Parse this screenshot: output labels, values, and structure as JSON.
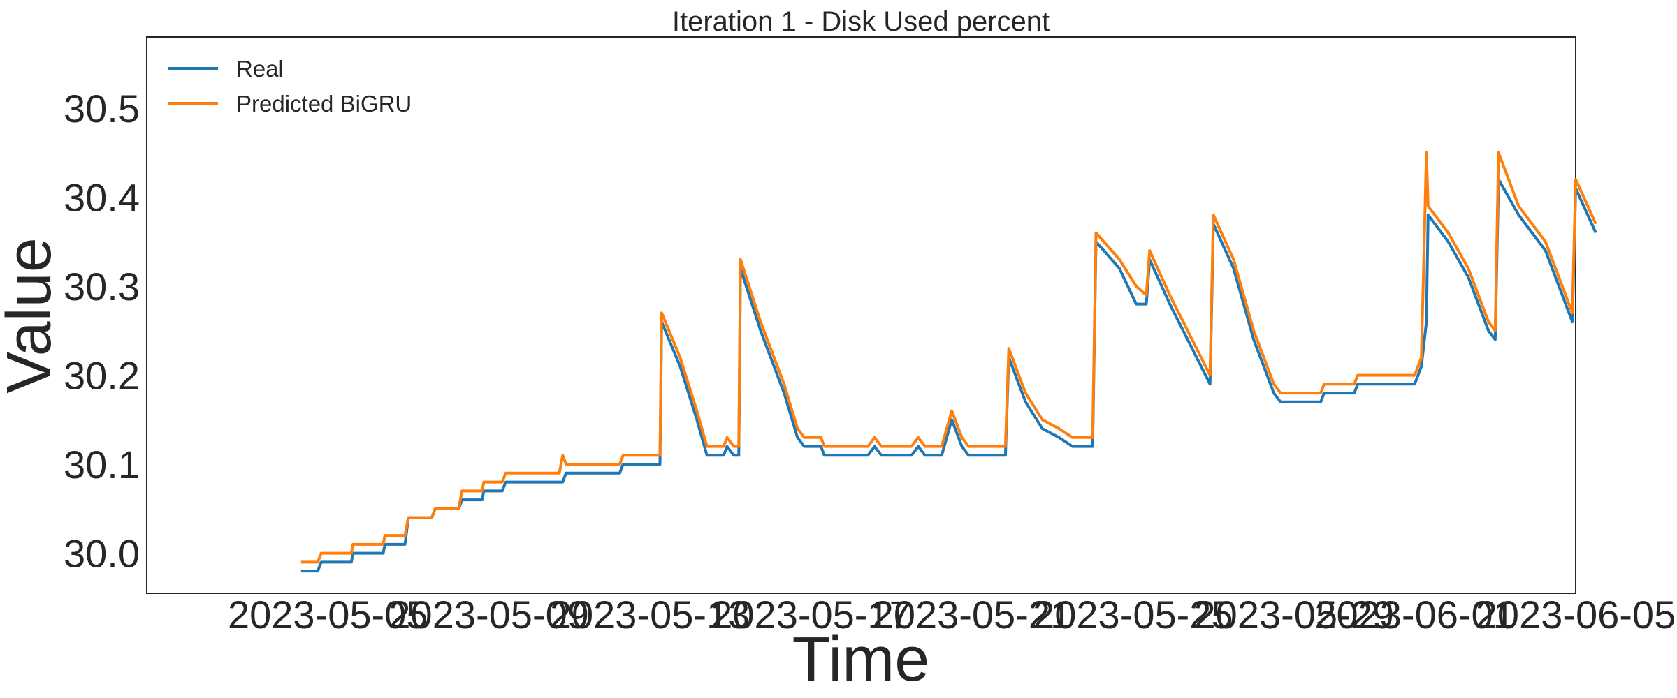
{
  "chart_data": {
    "type": "line",
    "title": "Iteration 1 - Disk Used percent",
    "xlabel": "Time",
    "ylabel": "Value",
    "xlim": [
      "2023-04-30T12:00",
      "2023-06-05T00:00"
    ],
    "ylim": [
      29.955,
      30.58
    ],
    "yticks": [
      "30.0",
      "30.1",
      "30.2",
      "30.3",
      "30.4",
      "30.5"
    ],
    "xticks": [
      "2023-05-05",
      "2023-05-09",
      "2023-05-13",
      "2023-05-17",
      "2023-05-21",
      "2023-05-25",
      "2023-05-29",
      "2023-06-01",
      "2023-06-05"
    ],
    "grid": false,
    "legend": "top-left",
    "colors": {
      "real": "#1f77b4",
      "predicted": "#ff7f0e",
      "axes": "#262626"
    },
    "series": [
      {
        "name": "Real",
        "color": "#1f77b4",
        "points": [
          [
            "2023-05-04T08:00",
            29.98
          ],
          [
            "2023-05-04T18:00",
            29.98
          ],
          [
            "2023-05-04T20:00",
            29.99
          ],
          [
            "2023-05-05T14:00",
            29.99
          ],
          [
            "2023-05-05T15:00",
            30.0
          ],
          [
            "2023-05-06T09:00",
            30.0
          ],
          [
            "2023-05-06T10:00",
            30.01
          ],
          [
            "2023-05-06T22:00",
            30.01
          ],
          [
            "2023-05-07T00:00",
            30.04
          ],
          [
            "2023-05-07T14:00",
            30.04
          ],
          [
            "2023-05-07T16:00",
            30.05
          ],
          [
            "2023-05-08T06:00",
            30.05
          ],
          [
            "2023-05-08T08:00",
            30.06
          ],
          [
            "2023-05-08T20:00",
            30.06
          ],
          [
            "2023-05-08T21:00",
            30.07
          ],
          [
            "2023-05-09T08:00",
            30.07
          ],
          [
            "2023-05-09T10:00",
            30.08
          ],
          [
            "2023-05-10T20:00",
            30.08
          ],
          [
            "2023-05-10T22:00",
            30.09
          ],
          [
            "2023-05-12T06:00",
            30.09
          ],
          [
            "2023-05-12T08:00",
            30.1
          ],
          [
            "2023-05-13T06:00",
            30.1
          ],
          [
            "2023-05-13T07:00",
            30.26
          ],
          [
            "2023-05-13T18:00",
            30.21
          ],
          [
            "2023-05-14T04:00",
            30.15
          ],
          [
            "2023-05-14T10:00",
            30.11
          ],
          [
            "2023-05-14T20:00",
            30.11
          ],
          [
            "2023-05-14T22:00",
            30.12
          ],
          [
            "2023-05-15T02:00",
            30.11
          ],
          [
            "2023-05-15T05:00",
            30.11
          ],
          [
            "2023-05-15T06:00",
            30.32
          ],
          [
            "2023-05-15T18:00",
            30.25
          ],
          [
            "2023-05-16T08:00",
            30.18
          ],
          [
            "2023-05-16T16:00",
            30.13
          ],
          [
            "2023-05-16T20:00",
            30.12
          ],
          [
            "2023-05-17T06:00",
            30.12
          ],
          [
            "2023-05-17T08:00",
            30.11
          ],
          [
            "2023-05-18T10:00",
            30.11
          ],
          [
            "2023-05-18T14:00",
            30.12
          ],
          [
            "2023-05-18T18:00",
            30.11
          ],
          [
            "2023-05-19T12:00",
            30.11
          ],
          [
            "2023-05-19T16:00",
            30.12
          ],
          [
            "2023-05-19T20:00",
            30.11
          ],
          [
            "2023-05-20T06:00",
            30.11
          ],
          [
            "2023-05-20T12:00",
            30.15
          ],
          [
            "2023-05-20T18:00",
            30.12
          ],
          [
            "2023-05-20T22:00",
            30.11
          ],
          [
            "2023-05-21T20:00",
            30.11
          ],
          [
            "2023-05-21T22:00",
            30.22
          ],
          [
            "2023-05-22T08:00",
            30.17
          ],
          [
            "2023-05-22T18:00",
            30.14
          ],
          [
            "2023-05-23T04:00",
            30.13
          ],
          [
            "2023-05-23T12:00",
            30.12
          ],
          [
            "2023-05-24T00:00",
            30.12
          ],
          [
            "2023-05-24T02:00",
            30.35
          ],
          [
            "2023-05-24T16:00",
            30.32
          ],
          [
            "2023-05-25T02:00",
            30.28
          ],
          [
            "2023-05-25T08:00",
            30.28
          ],
          [
            "2023-05-25T10:00",
            30.33
          ],
          [
            "2023-05-25T22:00",
            30.28
          ],
          [
            "2023-05-26T14:00",
            30.22
          ],
          [
            "2023-05-26T22:00",
            30.19
          ],
          [
            "2023-05-27T00:00",
            30.37
          ],
          [
            "2023-05-27T12:00",
            30.32
          ],
          [
            "2023-05-28T00:00",
            30.24
          ],
          [
            "2023-05-28T12:00",
            30.18
          ],
          [
            "2023-05-28T16:00",
            30.17
          ],
          [
            "2023-05-29T16:00",
            30.17
          ],
          [
            "2023-05-29T18:00",
            30.18
          ],
          [
            "2023-05-30T12:00",
            30.18
          ],
          [
            "2023-05-30T14:00",
            30.19
          ],
          [
            "2023-06-01T00:00",
            30.19
          ],
          [
            "2023-06-01T04:00",
            30.21
          ],
          [
            "2023-06-01T07:00",
            30.26
          ],
          [
            "2023-06-01T08:00",
            30.38
          ],
          [
            "2023-06-01T20:00",
            30.35
          ],
          [
            "2023-06-02T08:00",
            30.31
          ],
          [
            "2023-06-02T20:00",
            30.25
          ],
          [
            "2023-06-03T00:00",
            30.24
          ],
          [
            "2023-06-03T02:00",
            30.42
          ],
          [
            "2023-06-03T14:00",
            30.38
          ],
          [
            "2023-06-04T06:00",
            30.34
          ],
          [
            "2023-06-04T18:00",
            30.28
          ],
          [
            "2023-06-04T22:00",
            30.26
          ],
          [
            "2023-06-05T00:00",
            30.41
          ],
          [
            "2023-06-05T12:00",
            30.36
          ]
        ]
      },
      {
        "name": "Predicted BiGRU",
        "color": "#ff7f0e",
        "points": [
          [
            "2023-05-04T08:00",
            29.99
          ],
          [
            "2023-05-04T18:00",
            29.99
          ],
          [
            "2023-05-04T20:00",
            30.0
          ],
          [
            "2023-05-05T14:00",
            30.0
          ],
          [
            "2023-05-05T15:00",
            30.01
          ],
          [
            "2023-05-06T09:00",
            30.01
          ],
          [
            "2023-05-06T10:00",
            30.02
          ],
          [
            "2023-05-06T22:00",
            30.02
          ],
          [
            "2023-05-07T00:00",
            30.04
          ],
          [
            "2023-05-07T14:00",
            30.04
          ],
          [
            "2023-05-07T16:00",
            30.05
          ],
          [
            "2023-05-08T06:00",
            30.05
          ],
          [
            "2023-05-08T08:00",
            30.07
          ],
          [
            "2023-05-08T20:00",
            30.07
          ],
          [
            "2023-05-08T21:00",
            30.08
          ],
          [
            "2023-05-09T08:00",
            30.08
          ],
          [
            "2023-05-09T10:00",
            30.09
          ],
          [
            "2023-05-10T18:00",
            30.09
          ],
          [
            "2023-05-10T20:00",
            30.11
          ],
          [
            "2023-05-10T22:00",
            30.1
          ],
          [
            "2023-05-12T06:00",
            30.1
          ],
          [
            "2023-05-12T08:00",
            30.11
          ],
          [
            "2023-05-13T06:00",
            30.11
          ],
          [
            "2023-05-13T07:00",
            30.27
          ],
          [
            "2023-05-13T18:00",
            30.22
          ],
          [
            "2023-05-14T04:00",
            30.16
          ],
          [
            "2023-05-14T10:00",
            30.12
          ],
          [
            "2023-05-14T20:00",
            30.12
          ],
          [
            "2023-05-14T22:00",
            30.13
          ],
          [
            "2023-05-15T02:00",
            30.12
          ],
          [
            "2023-05-15T05:00",
            30.12
          ],
          [
            "2023-05-15T06:00",
            30.33
          ],
          [
            "2023-05-15T18:00",
            30.26
          ],
          [
            "2023-05-16T08:00",
            30.19
          ],
          [
            "2023-05-16T16:00",
            30.14
          ],
          [
            "2023-05-16T20:00",
            30.13
          ],
          [
            "2023-05-17T06:00",
            30.13
          ],
          [
            "2023-05-17T08:00",
            30.12
          ],
          [
            "2023-05-18T10:00",
            30.12
          ],
          [
            "2023-05-18T14:00",
            30.13
          ],
          [
            "2023-05-18T18:00",
            30.12
          ],
          [
            "2023-05-19T12:00",
            30.12
          ],
          [
            "2023-05-19T16:00",
            30.13
          ],
          [
            "2023-05-19T20:00",
            30.12
          ],
          [
            "2023-05-20T06:00",
            30.12
          ],
          [
            "2023-05-20T12:00",
            30.16
          ],
          [
            "2023-05-20T18:00",
            30.13
          ],
          [
            "2023-05-20T22:00",
            30.12
          ],
          [
            "2023-05-21T20:00",
            30.12
          ],
          [
            "2023-05-21T22:00",
            30.23
          ],
          [
            "2023-05-22T08:00",
            30.18
          ],
          [
            "2023-05-22T18:00",
            30.15
          ],
          [
            "2023-05-23T04:00",
            30.14
          ],
          [
            "2023-05-23T12:00",
            30.13
          ],
          [
            "2023-05-24T00:00",
            30.13
          ],
          [
            "2023-05-24T02:00",
            30.36
          ],
          [
            "2023-05-24T16:00",
            30.33
          ],
          [
            "2023-05-25T02:00",
            30.3
          ],
          [
            "2023-05-25T08:00",
            30.29
          ],
          [
            "2023-05-25T10:00",
            30.34
          ],
          [
            "2023-05-25T22:00",
            30.29
          ],
          [
            "2023-05-26T14:00",
            30.23
          ],
          [
            "2023-05-26T22:00",
            30.2
          ],
          [
            "2023-05-27T00:00",
            30.38
          ],
          [
            "2023-05-27T12:00",
            30.33
          ],
          [
            "2023-05-28T00:00",
            30.25
          ],
          [
            "2023-05-28T12:00",
            30.19
          ],
          [
            "2023-05-28T16:00",
            30.18
          ],
          [
            "2023-05-29T16:00",
            30.18
          ],
          [
            "2023-05-29T18:00",
            30.19
          ],
          [
            "2023-05-30T12:00",
            30.19
          ],
          [
            "2023-05-30T14:00",
            30.2
          ],
          [
            "2023-06-01T00:00",
            30.2
          ],
          [
            "2023-06-01T04:00",
            30.22
          ],
          [
            "2023-06-01T07:00",
            30.45
          ],
          [
            "2023-06-01T08:00",
            30.39
          ],
          [
            "2023-06-01T20:00",
            30.36
          ],
          [
            "2023-06-02T08:00",
            30.32
          ],
          [
            "2023-06-02T20:00",
            30.26
          ],
          [
            "2023-06-03T00:00",
            30.25
          ],
          [
            "2023-06-03T02:00",
            30.45
          ],
          [
            "2023-06-03T14:00",
            30.39
          ],
          [
            "2023-06-04T06:00",
            30.35
          ],
          [
            "2023-06-04T18:00",
            30.29
          ],
          [
            "2023-06-04T22:00",
            30.27
          ],
          [
            "2023-06-05T00:00",
            30.42
          ],
          [
            "2023-06-05T12:00",
            30.37
          ]
        ]
      }
    ]
  }
}
